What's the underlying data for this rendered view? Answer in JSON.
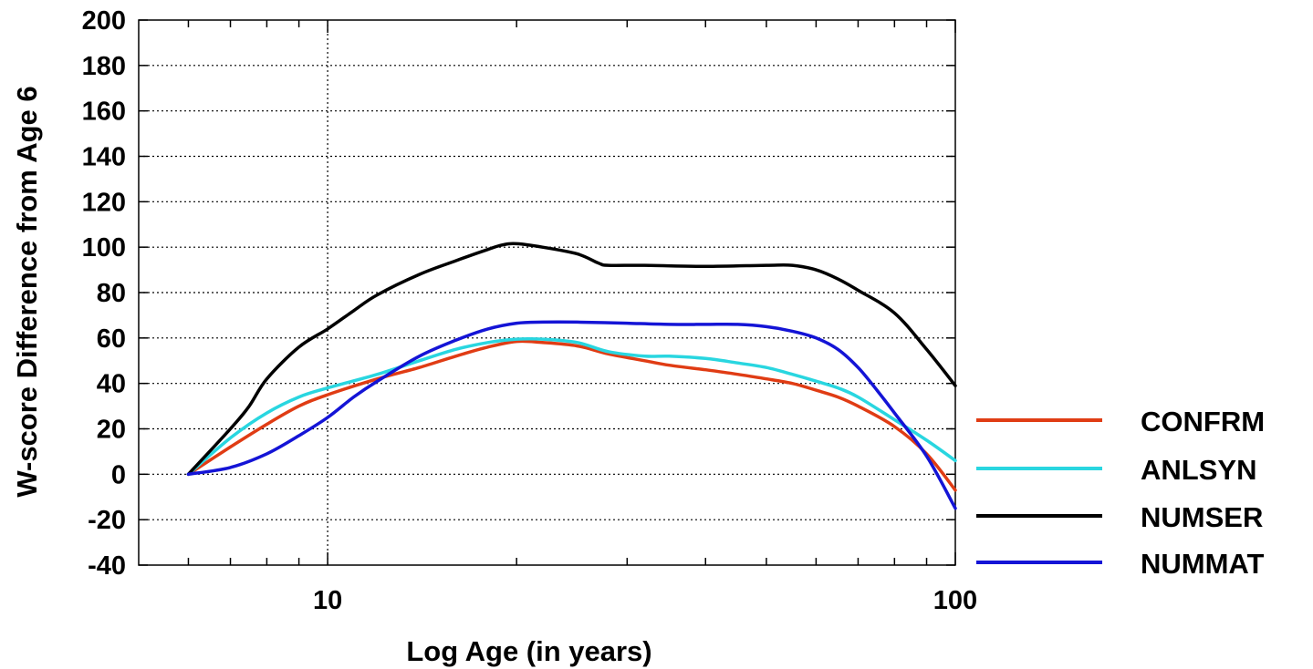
{
  "chart_data": {
    "type": "line",
    "xscale": "log",
    "xlabel": "Log Age (in years)",
    "ylabel": "W-score Difference from Age 6",
    "xlim": [
      5,
      100
    ],
    "ylim": [
      -40,
      200
    ],
    "xticks": [
      10,
      100
    ],
    "xminor_ticks": [
      6,
      7,
      8,
      9,
      20,
      30,
      40,
      50,
      60,
      70,
      80,
      90
    ],
    "yticks": [
      -40,
      -20,
      0,
      20,
      40,
      60,
      80,
      100,
      120,
      140,
      160,
      180,
      200
    ],
    "grid": true,
    "legend_position": "right",
    "series": [
      {
        "name": "CONFRM",
        "color": "#e03c14",
        "points": [
          [
            6,
            0
          ],
          [
            7,
            12
          ],
          [
            8,
            22
          ],
          [
            9,
            30
          ],
          [
            10,
            35
          ],
          [
            12,
            42
          ],
          [
            14,
            47
          ],
          [
            16,
            52
          ],
          [
            18,
            56
          ],
          [
            20,
            58.5
          ],
          [
            22,
            58
          ],
          [
            25,
            56.5
          ],
          [
            28,
            53
          ],
          [
            32,
            50
          ],
          [
            35,
            48
          ],
          [
            40,
            46
          ],
          [
            45,
            44
          ],
          [
            50,
            42
          ],
          [
            55,
            40
          ],
          [
            60,
            37
          ],
          [
            65,
            34
          ],
          [
            70,
            30
          ],
          [
            80,
            21
          ],
          [
            90,
            9
          ],
          [
            100,
            -7
          ]
        ]
      },
      {
        "name": "ANLSYN",
        "color": "#29d6e0",
        "points": [
          [
            6,
            0
          ],
          [
            7,
            16
          ],
          [
            8,
            27
          ],
          [
            9,
            34
          ],
          [
            10,
            38
          ],
          [
            12,
            44
          ],
          [
            14,
            50
          ],
          [
            16,
            55
          ],
          [
            18,
            58
          ],
          [
            20,
            59.5
          ],
          [
            22,
            59.5
          ],
          [
            25,
            58
          ],
          [
            28,
            54
          ],
          [
            32,
            52
          ],
          [
            35,
            52
          ],
          [
            40,
            51
          ],
          [
            45,
            49
          ],
          [
            50,
            47
          ],
          [
            55,
            44
          ],
          [
            60,
            41
          ],
          [
            65,
            38
          ],
          [
            70,
            34
          ],
          [
            80,
            24
          ],
          [
            90,
            15
          ],
          [
            100,
            6
          ]
        ]
      },
      {
        "name": "NUMSER",
        "color": "#000000",
        "points": [
          [
            6,
            0
          ],
          [
            7,
            20
          ],
          [
            7.5,
            30
          ],
          [
            8,
            42
          ],
          [
            9,
            56
          ],
          [
            10,
            64
          ],
          [
            11,
            72
          ],
          [
            12,
            79
          ],
          [
            14,
            88
          ],
          [
            16,
            94
          ],
          [
            18,
            99
          ],
          [
            19,
            101
          ],
          [
            20,
            101.5
          ],
          [
            22,
            100
          ],
          [
            25,
            97
          ],
          [
            27,
            93
          ],
          [
            28,
            92
          ],
          [
            32,
            92
          ],
          [
            40,
            91.5
          ],
          [
            50,
            92
          ],
          [
            55,
            92
          ],
          [
            60,
            90
          ],
          [
            65,
            86
          ],
          [
            70,
            81
          ],
          [
            80,
            71
          ],
          [
            90,
            55
          ],
          [
            100,
            39
          ]
        ]
      },
      {
        "name": "NUMMAT",
        "color": "#1414d6",
        "points": [
          [
            6,
            0
          ],
          [
            7,
            3
          ],
          [
            8,
            9
          ],
          [
            9,
            17
          ],
          [
            10,
            25
          ],
          [
            11,
            34
          ],
          [
            12,
            41
          ],
          [
            14,
            52
          ],
          [
            16,
            59
          ],
          [
            18,
            64
          ],
          [
            20,
            66.5
          ],
          [
            22,
            67
          ],
          [
            25,
            67
          ],
          [
            30,
            66.5
          ],
          [
            35,
            66
          ],
          [
            40,
            66
          ],
          [
            45,
            66
          ],
          [
            50,
            65
          ],
          [
            55,
            63
          ],
          [
            60,
            60
          ],
          [
            65,
            55
          ],
          [
            70,
            47
          ],
          [
            75,
            37
          ],
          [
            80,
            27
          ],
          [
            90,
            8
          ],
          [
            100,
            -15
          ]
        ]
      }
    ]
  }
}
